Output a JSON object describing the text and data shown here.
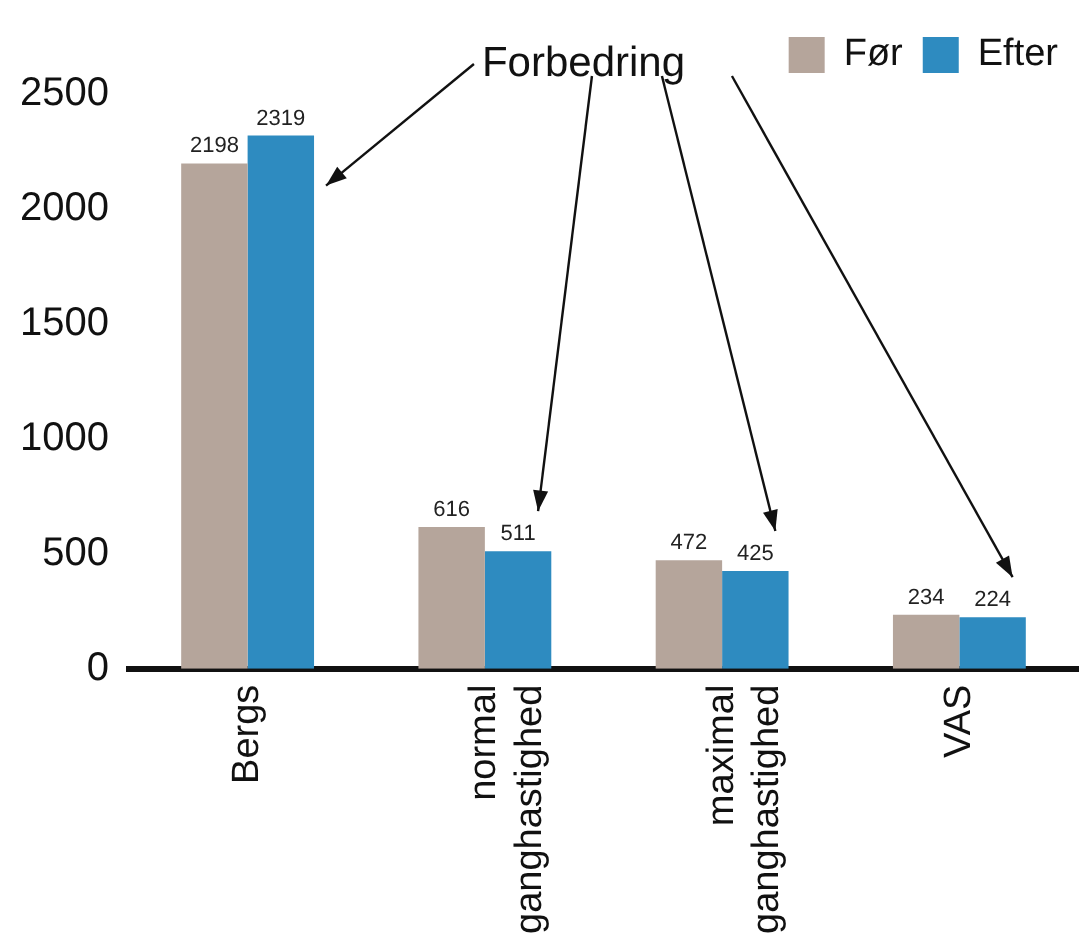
{
  "chart_data": {
    "type": "bar",
    "categories": [
      "Bergs",
      "normal ganghastighed",
      "maximal ganghastighed",
      "VAS"
    ],
    "series": [
      {
        "name": "Før",
        "color": "#b5a59b",
        "values": [
          2198,
          616,
          472,
          234
        ]
      },
      {
        "name": "Efter",
        "color": "#2e8bc0",
        "values": [
          2319,
          511,
          425,
          224
        ]
      }
    ],
    "ylim": [
      0,
      2500
    ],
    "yticks": [
      0,
      500,
      1000,
      1500,
      2000,
      2500
    ],
    "grid": false,
    "legend": "top right",
    "data_labels": true,
    "annotations": [
      "Forbedring"
    ]
  }
}
